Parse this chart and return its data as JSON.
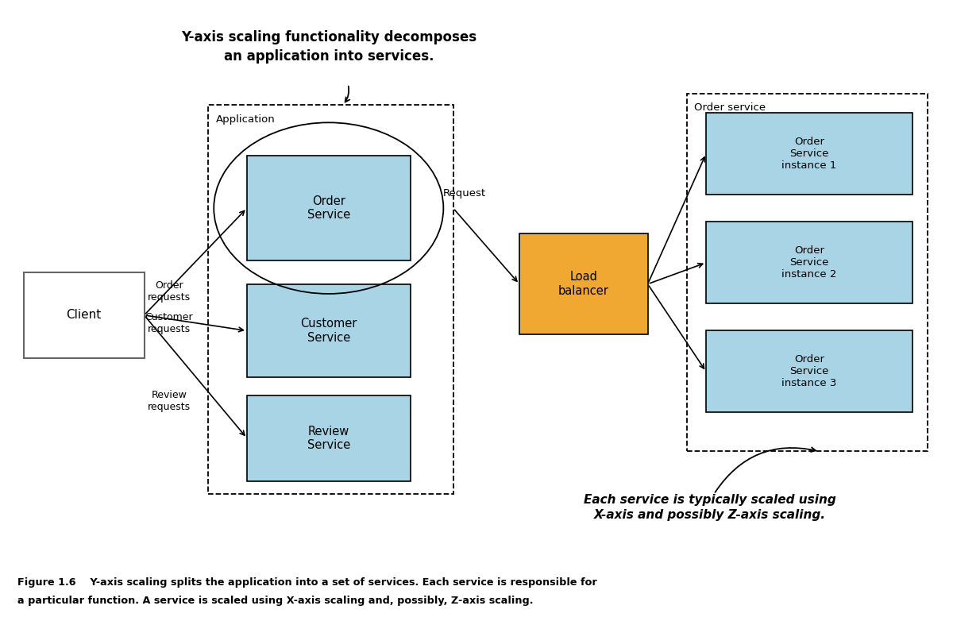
{
  "fig_width": 12.0,
  "fig_height": 7.82,
  "bg_color": "#ffffff",
  "light_blue": "#a8d4e6",
  "orange": "#f0a832",
  "annotation_top": "Y-axis scaling functionality decomposes\nan application into services.",
  "annotation_bottom": "Each service is typically scaled using\nX-axis and possibly Z-axis scaling.",
  "caption_line1": "Figure 1.6    Y-axis scaling splits the application into a set of services. Each service is responsible for",
  "caption_line2": "a particular function. A service is scaled using X-axis scaling and, possibly, Z-axis scaling.",
  "client_label": "Client",
  "application_label": "Application",
  "order_service_label": "Order\nService",
  "customer_service_label": "Customer\nService",
  "review_service_label": "Review\nService",
  "load_balancer_label": "Load\nbalancer",
  "order_service_group_label": "Order service",
  "instance_labels": [
    "Order\nService\ninstance 1",
    "Order\nService\ninstance 2",
    "Order\nService\ninstance 3"
  ],
  "request_label": "Request",
  "order_requests_label": "Order\nrequests",
  "customer_requests_label": "Customer\nrequests",
  "review_requests_label": "Review\nrequests",
  "xlim": [
    0,
    12
  ],
  "ylim": [
    0,
    7.82
  ]
}
